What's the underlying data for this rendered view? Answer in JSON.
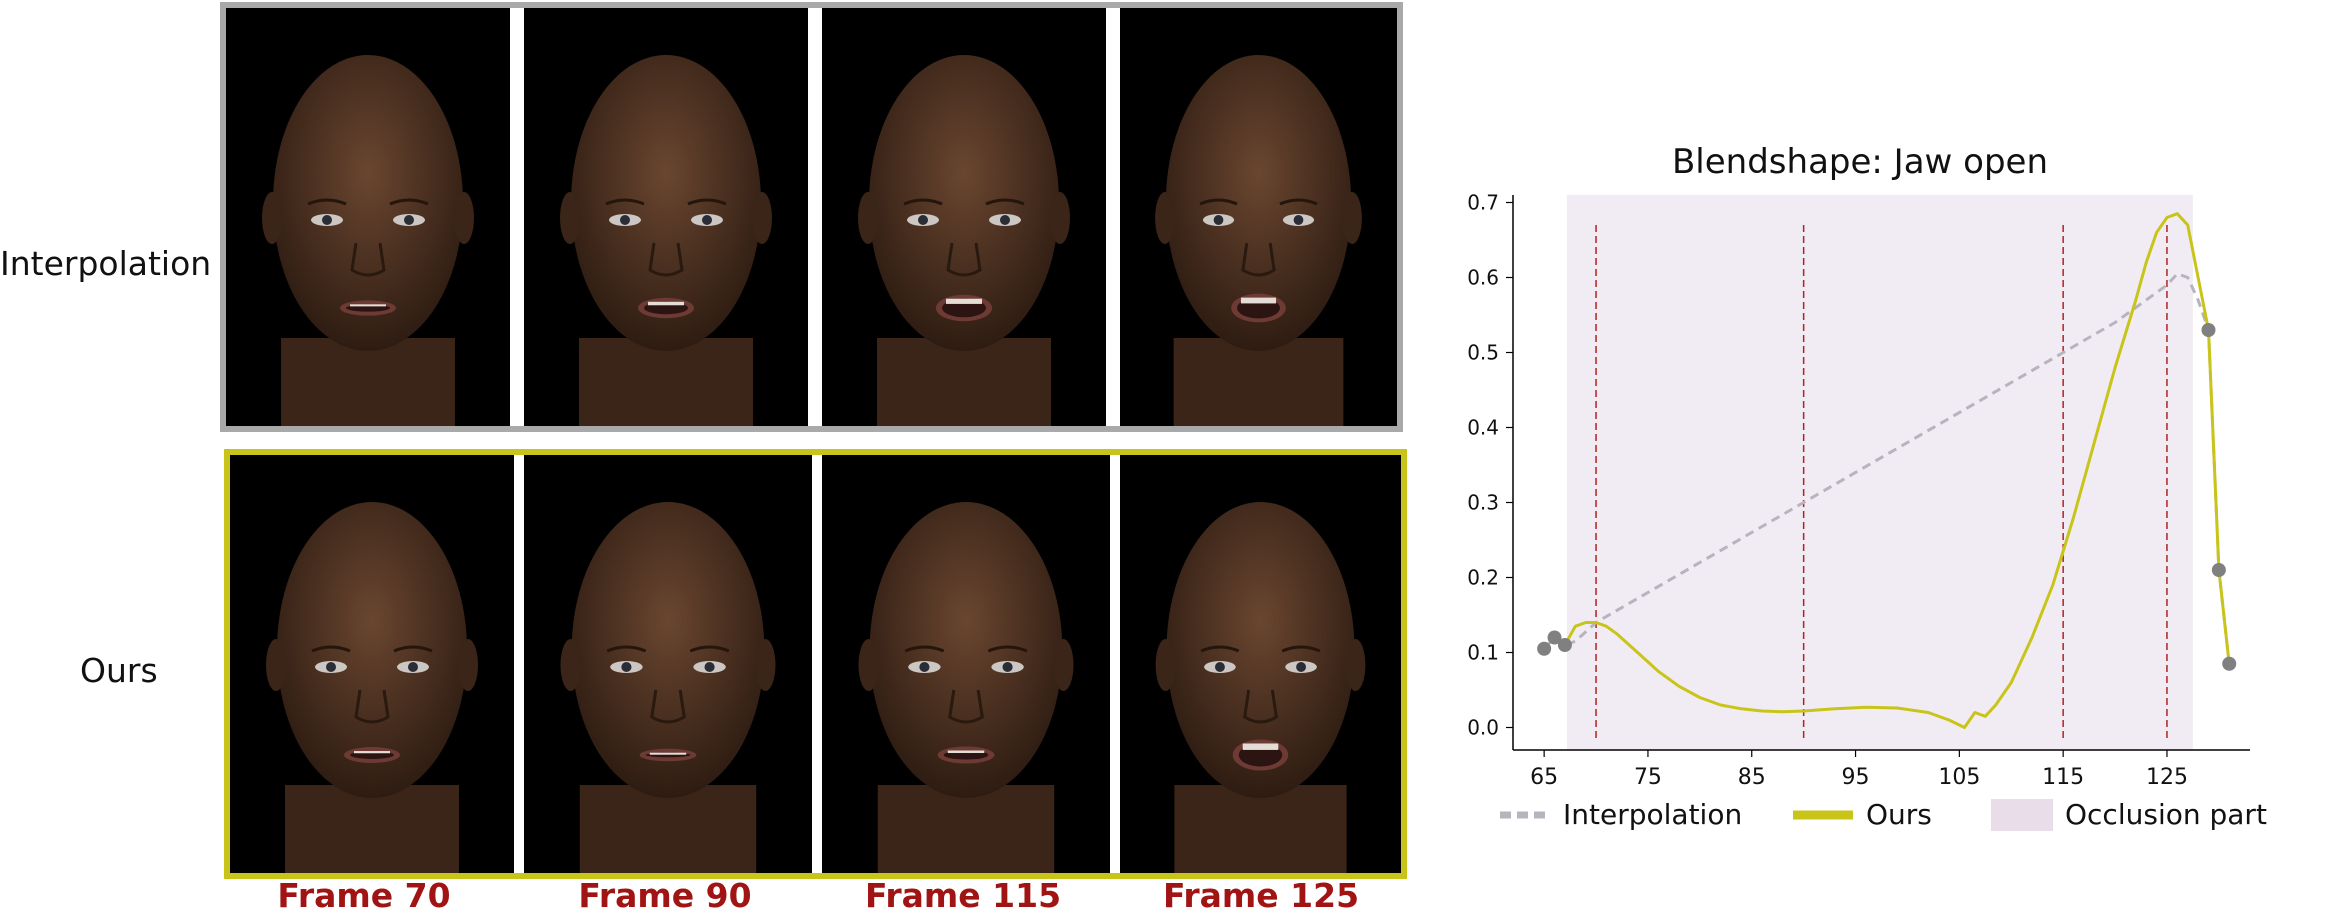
{
  "row_labels": {
    "interpolation": "Interpolation",
    "ours": "Ours"
  },
  "frames": [
    "Frame 70",
    "Frame 90",
    "Frame 115",
    "Frame 125"
  ],
  "colors": {
    "interp_border": "#a9a9a9",
    "ours_border": "#c9c41a",
    "frame_label": "#a11414",
    "skin": "#4a3020",
    "ours_line": "#c9c41a",
    "interp_line": "#b8b4be",
    "occlusion": "#f1ecf3",
    "marker": "#808080",
    "vline": "#b22222"
  },
  "faces": {
    "interpolation": [
      {
        "mouth_open": 0.12
      },
      {
        "mouth_open": 0.3
      },
      {
        "mouth_open": 0.52
      },
      {
        "mouth_open": 0.6
      }
    ],
    "ours": [
      {
        "mouth_open": 0.14
      },
      {
        "mouth_open": 0.02
      },
      {
        "mouth_open": 0.18
      },
      {
        "mouth_open": 0.68
      }
    ]
  },
  "chart_data": {
    "type": "line",
    "title": "Blendshape: Jaw open",
    "xlabel": "",
    "ylabel": "",
    "xlim": [
      62,
      133
    ],
    "ylim": [
      -0.03,
      0.71
    ],
    "xticks": [
      65,
      75,
      85,
      95,
      105,
      115,
      125
    ],
    "yticks": [
      0.0,
      0.1,
      0.2,
      0.3,
      0.4,
      0.5,
      0.6,
      0.7
    ],
    "occlusion_range": [
      67.2,
      127.5
    ],
    "frame_markers": [
      70,
      90,
      115,
      125
    ],
    "series": [
      {
        "name": "Interpolation",
        "style": "dashed",
        "x": [
          65,
          66,
          67,
          68,
          70,
          80,
          90,
          100,
          110,
          115,
          120,
          125,
          126,
          127,
          128,
          129,
          130,
          131
        ],
        "y": [
          0.105,
          0.12,
          0.11,
          0.115,
          0.14,
          0.22,
          0.3,
          0.38,
          0.46,
          0.5,
          0.54,
          0.59,
          0.605,
          0.6,
          0.57,
          0.53,
          0.21,
          0.085
        ]
      },
      {
        "name": "Ours",
        "style": "solid",
        "x": [
          67,
          68,
          69,
          70,
          71,
          72,
          74,
          76,
          78,
          80,
          82,
          84,
          86,
          88,
          90,
          93,
          96,
          99,
          102,
          104,
          105.5,
          106.5,
          107.5,
          108.5,
          110,
          112,
          114,
          116,
          118,
          120,
          122,
          123,
          124,
          125,
          126,
          127,
          128,
          129,
          130,
          131
        ],
        "y": [
          0.11,
          0.135,
          0.14,
          0.14,
          0.135,
          0.125,
          0.1,
          0.075,
          0.055,
          0.04,
          0.03,
          0.025,
          0.022,
          0.021,
          0.022,
          0.025,
          0.027,
          0.026,
          0.02,
          0.01,
          0.0,
          0.02,
          0.015,
          0.03,
          0.06,
          0.12,
          0.19,
          0.28,
          0.38,
          0.48,
          0.57,
          0.62,
          0.66,
          0.68,
          0.685,
          0.67,
          0.6,
          0.53,
          0.21,
          0.085
        ]
      }
    ],
    "markers": {
      "x": [
        65,
        66,
        67,
        129,
        130,
        131
      ],
      "y": [
        0.105,
        0.12,
        0.11,
        0.53,
        0.21,
        0.085
      ]
    },
    "legend": {
      "placement": "bottom",
      "items": [
        "Interpolation",
        "Ours",
        "Occlusion part"
      ]
    }
  }
}
